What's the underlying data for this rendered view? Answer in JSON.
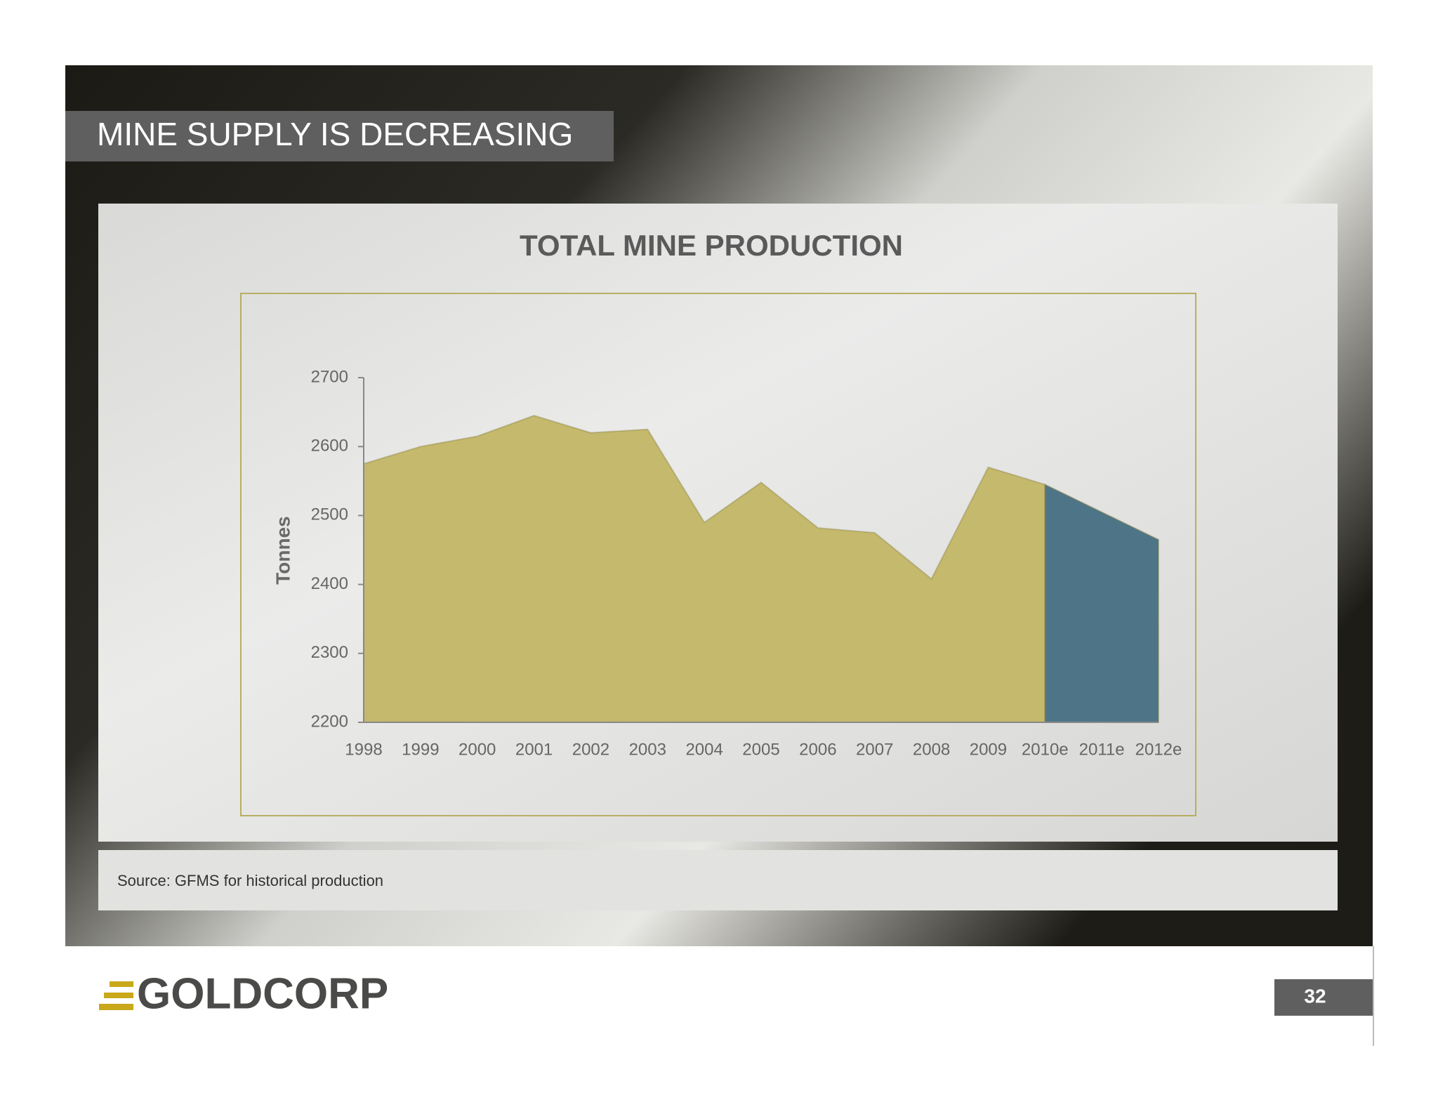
{
  "slide_title": "MINE SUPPLY IS DECREASING",
  "source": "Source: GFMS for historical production",
  "logo": "GOLDCORP",
  "page_number": "32",
  "chart_data": {
    "type": "area",
    "title": "TOTAL  MINE  PRODUCTION",
    "y_label": "Tonnes",
    "categories": [
      "1998",
      "1999",
      "2000",
      "2001",
      "2002",
      "2003",
      "2004",
      "2005",
      "2006",
      "2007",
      "2008",
      "2009",
      "2010e",
      "2011e",
      "2012e"
    ],
    "series": [
      {
        "color": "#c4b96c",
        "values": [
          2575,
          2600,
          2615,
          2645,
          2620,
          2625,
          2490,
          2548,
          2482,
          2475,
          2408,
          2570,
          2545,
          null,
          null
        ]
      },
      {
        "color": "#4e7587",
        "values": [
          null,
          null,
          null,
          null,
          null,
          null,
          null,
          null,
          null,
          null,
          null,
          null,
          2545,
          2505,
          2465
        ]
      }
    ],
    "ylim": [
      2200,
      2700
    ],
    "yticks": [
      2200,
      2300,
      2400,
      2500,
      2600,
      2700
    ]
  }
}
